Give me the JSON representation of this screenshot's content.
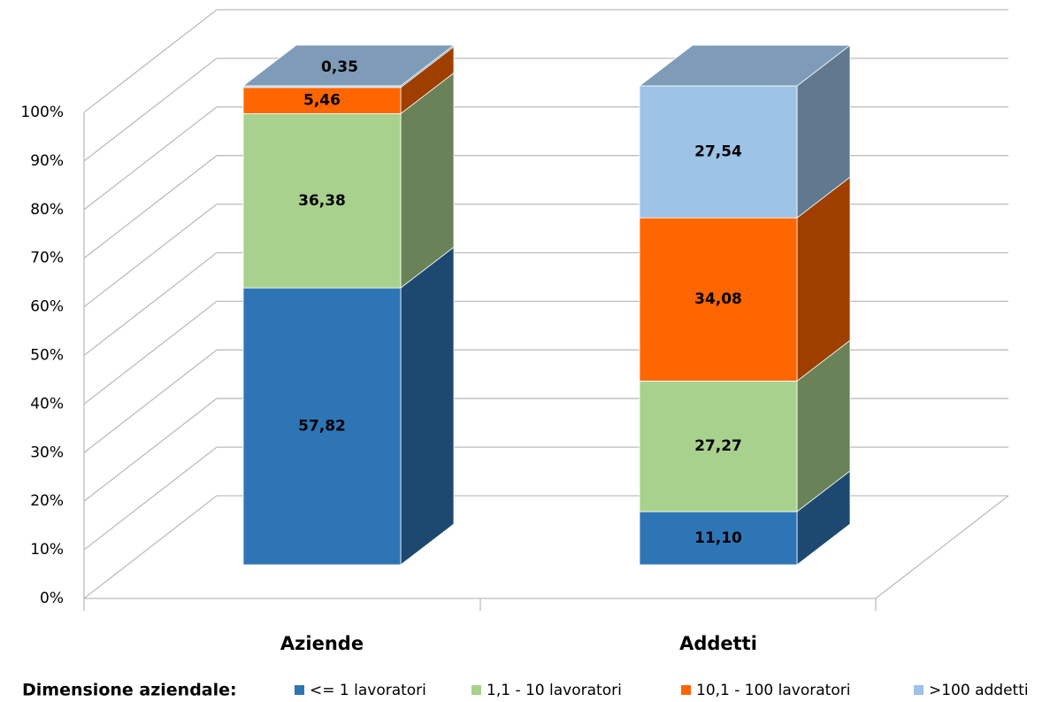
{
  "chart_data": {
    "type": "bar3d_stacked",
    "categories": [
      "Aziende",
      "Addetti"
    ],
    "series": [
      {
        "name": "<= 1 lavoratori",
        "color": "#2e75b6",
        "values": [
          57.82,
          11.1
        ],
        "value_labels": [
          "57,82",
          "11,10"
        ]
      },
      {
        "name": "1,1 - 10 lavoratori",
        "color": "#a9d18e",
        "values": [
          36.38,
          27.27
        ],
        "value_labels": [
          "36,38",
          "27,27"
        ]
      },
      {
        "name": "10,1 - 100 lavoratori",
        "color": "#ff6600",
        "values": [
          5.46,
          34.08
        ],
        "value_labels": [
          "5,46",
          "34,08"
        ]
      },
      {
        "name": ">100 addetti",
        "color": "#9dc3e6",
        "values": [
          0.35,
          27.54
        ],
        "value_labels": [
          "0,35",
          "27,54"
        ]
      }
    ],
    "ylim": [
      0,
      100
    ],
    "yticks": [
      {
        "value": 0,
        "label": "0%"
      },
      {
        "value": 10,
        "label": "10%"
      },
      {
        "value": 20,
        "label": "20%"
      },
      {
        "value": 30,
        "label": "30%"
      },
      {
        "value": 40,
        "label": "40%"
      },
      {
        "value": 50,
        "label": "50%"
      },
      {
        "value": 60,
        "label": "60%"
      },
      {
        "value": 70,
        "label": "70%"
      },
      {
        "value": 80,
        "label": "80%"
      },
      {
        "value": 90,
        "label": "90%"
      },
      {
        "value": 100,
        "label": "100%"
      }
    ],
    "grid": true,
    "legend_title": "Dimensione aziendale:",
    "legend": "bottom"
  }
}
